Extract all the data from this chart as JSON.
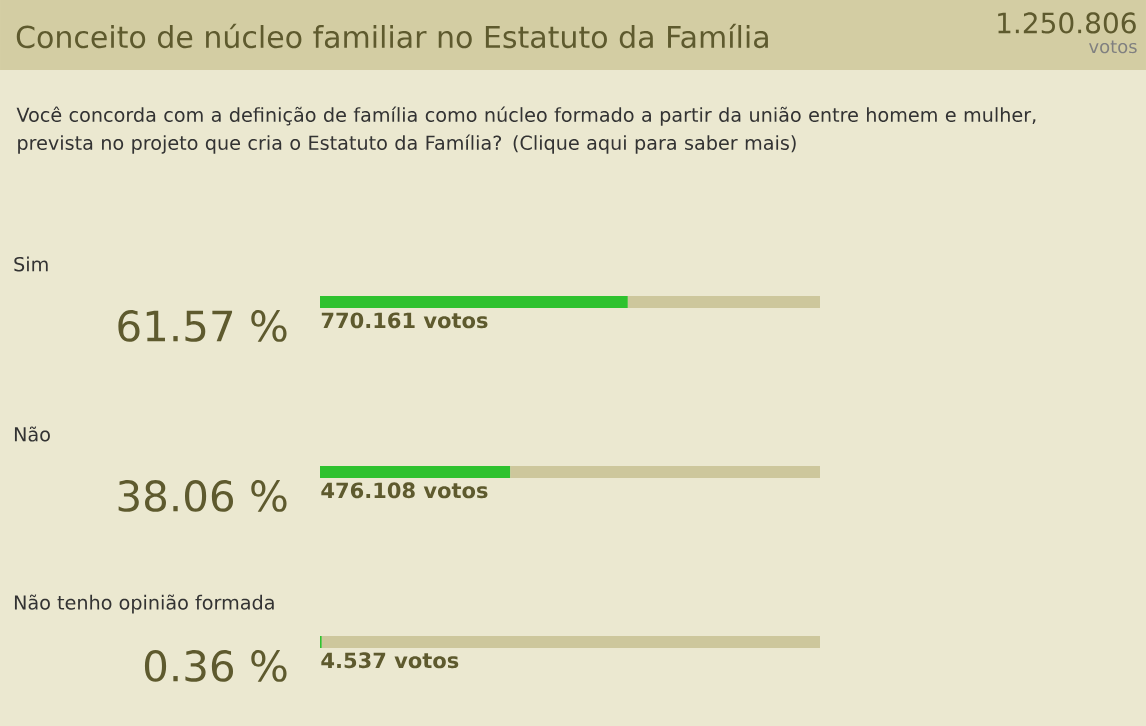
{
  "chart_data": {
    "type": "bar",
    "orientation": "horizontal",
    "stacked": true,
    "title": "Conceito de núcleo familiar no Estatuto da Família",
    "subtitle": "Você concorda com a definição de família como núcleo formado a partir da união entre homem e mulher, prevista no projeto que cria o Estatuto da Família? (Clique aqui para saber mais)",
    "categories": [
      "Sim",
      "Não",
      "Não tenho opinião formada"
    ],
    "series": [
      {
        "color": "#2ec22e",
        "values": [
          61.57,
          38.06,
          0.36
        ],
        "value_labels": [
          "61.57 %",
          "38.06 %",
          "0.36 %"
        ]
      },
      {
        "color": "#cdc79c",
        "values": [
          38.43,
          61.94,
          99.64
        ]
      }
    ],
    "xlim": [
      0,
      100
    ],
    "annotations": [
      "770.161 votos",
      "476.108 votos",
      "4.537 votos",
      "1.250.806",
      "votos"
    ]
  }
}
